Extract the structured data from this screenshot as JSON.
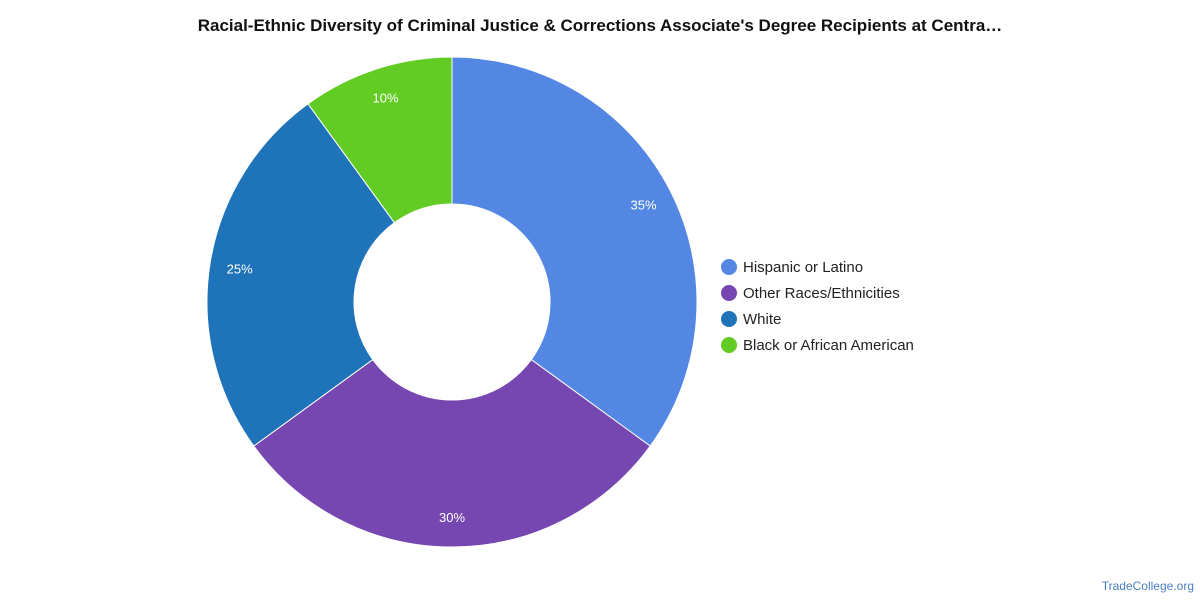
{
  "chart_data": {
    "type": "pie",
    "title": "Racial-Ethnic Diversity of Criminal Justice & Corrections Associate's Degree Recipients at Centra…",
    "donut": true,
    "legend_position": "right",
    "slices": [
      {
        "label": "Hispanic or Latino",
        "value": 35,
        "display": "35%",
        "color": "#5387e3"
      },
      {
        "label": "Other Races/Ethnicities",
        "value": 30,
        "display": "30%",
        "color": "#7647b0"
      },
      {
        "label": "White",
        "value": 25,
        "display": "25%",
        "color": "#1f74b9"
      },
      {
        "label": "Black or African American",
        "value": 10,
        "display": "10%",
        "color": "#62cb24"
      }
    ]
  },
  "watermark": "TradeCollege.org"
}
